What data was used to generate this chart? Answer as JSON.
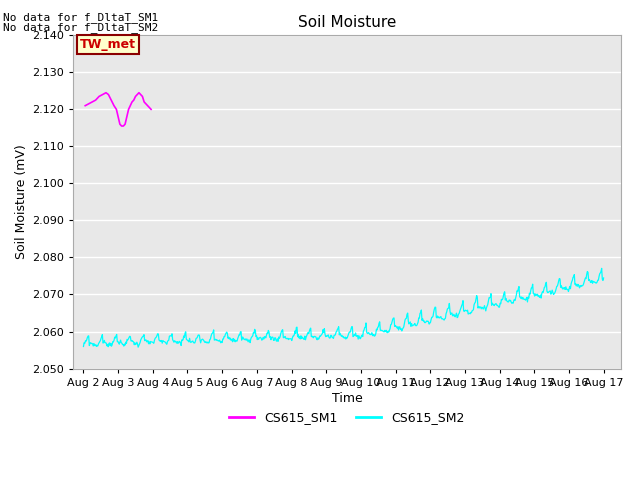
{
  "title": "Soil Moisture",
  "xlabel": "Time",
  "ylabel": "Soil Moisture (mV)",
  "ylim": [
    2.05,
    2.14
  ],
  "yticks": [
    2.05,
    2.06,
    2.07,
    2.08,
    2.09,
    2.1,
    2.11,
    2.12,
    2.13,
    2.14
  ],
  "bg_color": "#e8e8e8",
  "fig_bg_color": "#ffffff",
  "grid_color": "#ffffff",
  "annotation_text_line1": "No data for f_DltaT_SM1",
  "annotation_text_line2": "No data for f_DltaT_SM2",
  "tw_met_label": "TW_met",
  "tw_met_bg": "#ffffcc",
  "tw_met_border": "#8B0000",
  "tw_met_text_color": "#cc0000",
  "legend_labels": [
    "CS615_SM1",
    "CS615_SM2"
  ],
  "line1_color": "#ff00ff",
  "line2_color": "#00ffff",
  "title_fontsize": 11,
  "axis_label_fontsize": 9,
  "tick_fontsize": 8,
  "annot_fontsize": 8,
  "legend_fontsize": 9,
  "xtick_labels": [
    "Aug 2",
    "Aug 3",
    "Aug 4",
    "Aug 5",
    "Aug 6",
    "Aug 7",
    "Aug 8",
    "Aug 9",
    "Aug 10",
    "Aug 11",
    "Aug 12",
    "Aug 13",
    "Aug 14",
    "Aug 15",
    "Aug 16",
    "Aug 17"
  ],
  "xtick_positions": [
    0,
    1,
    2,
    3,
    4,
    5,
    6,
    7,
    8,
    9,
    10,
    11,
    12,
    13,
    14,
    15
  ],
  "xlim": [
    -0.3,
    15.5
  ]
}
